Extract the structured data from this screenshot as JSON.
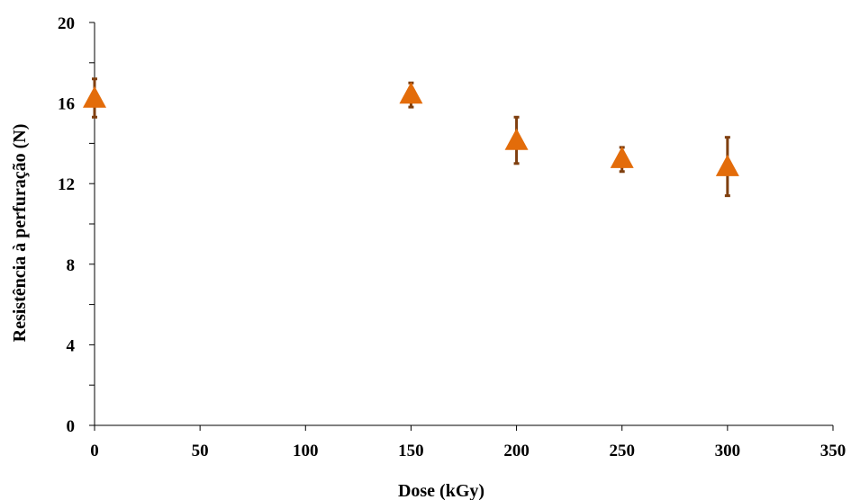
{
  "chart_data": {
    "type": "scatter",
    "xlabel": "Dose (kGy)",
    "ylabel": "Resistência à perfuração (N)",
    "xlim": [
      0,
      350
    ],
    "ylim": [
      0,
      20
    ],
    "x_ticks": [
      0,
      50,
      100,
      150,
      200,
      250,
      300,
      350
    ],
    "y_ticks": [
      0,
      4,
      8,
      12,
      16,
      20
    ],
    "y_minor_step": 2,
    "grid": false,
    "legend": "none",
    "series": [
      {
        "marker": "triangle",
        "color": "#E36C0A",
        "error_bar_color": "#7F3F0F",
        "points": [
          {
            "x": 0,
            "y": 16.2,
            "err_low": 15.3,
            "err_high": 17.2
          },
          {
            "x": 150,
            "y": 16.4,
            "err_low": 15.8,
            "err_high": 17.0
          },
          {
            "x": 200,
            "y": 14.1,
            "err_low": 13.0,
            "err_high": 15.3
          },
          {
            "x": 250,
            "y": 13.2,
            "err_low": 12.6,
            "err_high": 13.8
          },
          {
            "x": 300,
            "y": 12.8,
            "err_low": 11.4,
            "err_high": 14.3
          }
        ]
      }
    ]
  }
}
